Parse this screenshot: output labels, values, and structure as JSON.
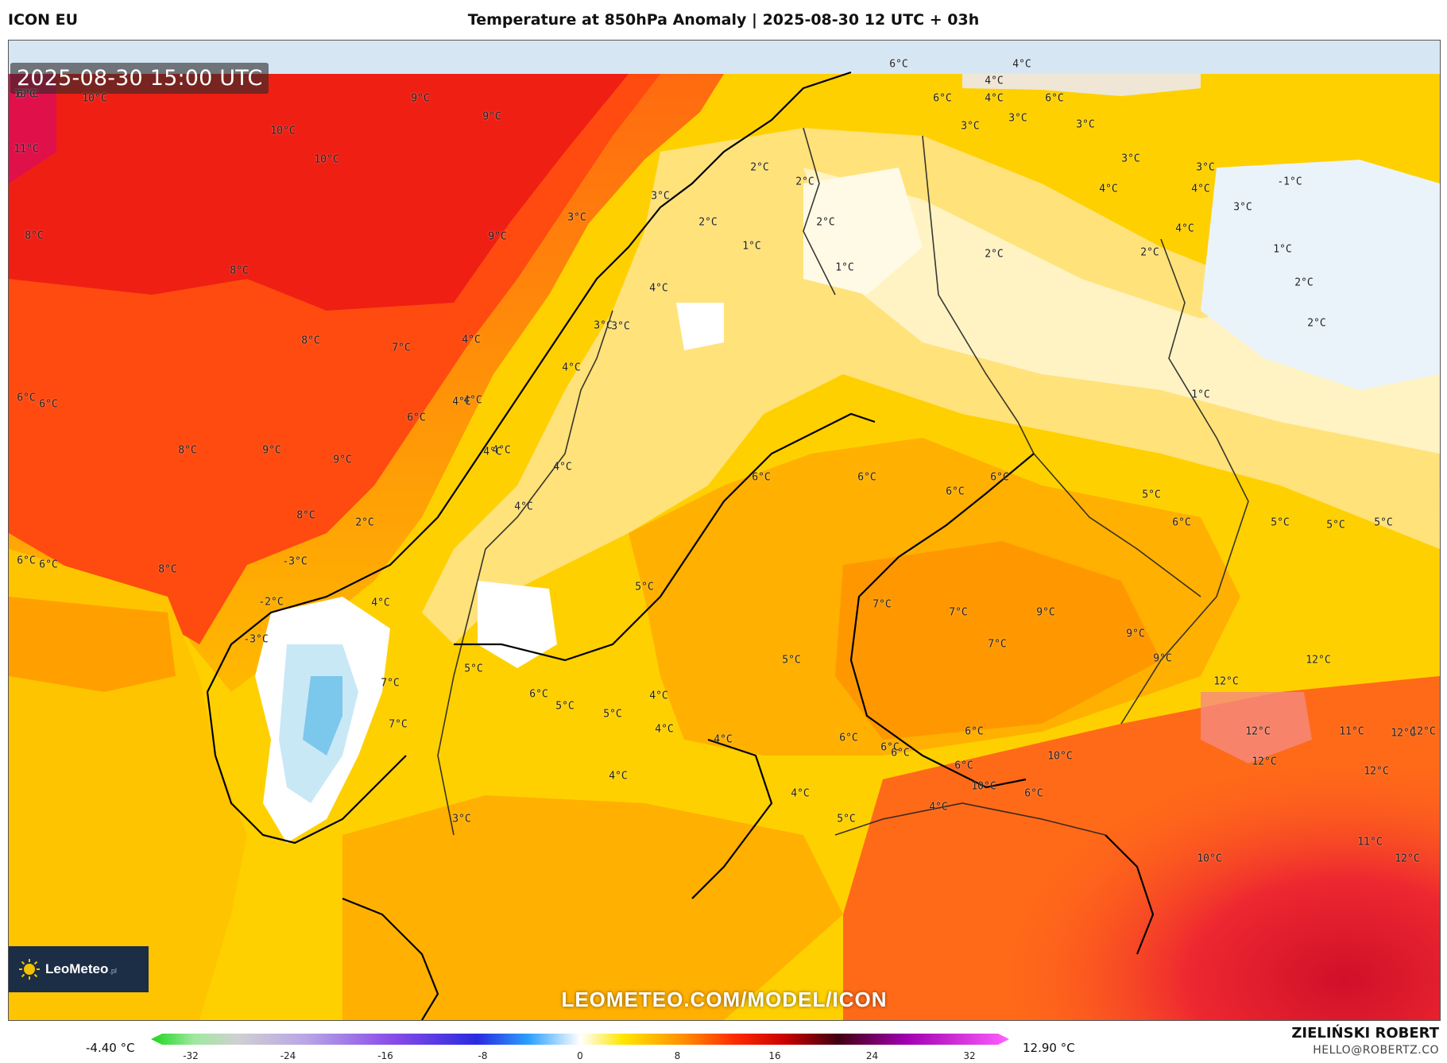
{
  "header": {
    "model": "ICON EU",
    "title": "Temperature at 850hPa Anomaly | 2025-08-30 12 UTC + 03h"
  },
  "map": {
    "timestamp": "2025-08-30 15:00 UTC",
    "watermark": "LEOMETEO.COM/MODEL/ICON",
    "logo": {
      "brand": "LeoMeteo",
      "suffix": ".pl"
    },
    "labels": [
      "10°C",
      "10°C",
      "11°C",
      "9°C",
      "10°C",
      "10°C",
      "9°C",
      "9°C",
      "8°C",
      "8°C",
      "8°C",
      "6°C",
      "6°C",
      "8°C",
      "9°C",
      "8°C",
      "9°C",
      "6°C",
      "6°C",
      "6°C",
      "8°C",
      "7°C",
      "4°C",
      "4°C",
      "4°C",
      "4°C",
      "3°C",
      "3°C",
      "4°C",
      "6°C",
      "3°C",
      "3°C",
      "3°C",
      "4°C",
      "2°C",
      "2°C",
      "2°C",
      "1°C",
      "2°C",
      "1°C",
      "2°C",
      "3°C",
      "4°C",
      "4°C",
      "4°C",
      "6°C",
      "6°C",
      "4°C",
      "3°C",
      "2°C",
      "1°C",
      "-1°C",
      "3°C",
      "2°C",
      "2°C",
      "1°C",
      "4°C",
      "4°C",
      "4°C",
      "4°C",
      "3°C",
      "3°C",
      "4°C",
      "2°C",
      "-3°C",
      "-2°C",
      "-3°C",
      "4°C",
      "5°C",
      "5°C",
      "6°C",
      "6°C",
      "6°C",
      "6°C",
      "5°C",
      "5°C",
      "6°C",
      "5°C",
      "5°C",
      "5°C",
      "6°C",
      "5°C",
      "4°C",
      "5°C",
      "4°C",
      "4°C",
      "4°C",
      "7°C",
      "7°C",
      "7°C",
      "7°C",
      "7°C",
      "9°C",
      "9°C",
      "9°C",
      "12°C",
      "12°C",
      "12°C",
      "12°C",
      "11°C",
      "12°C",
      "12°C",
      "12°C",
      "11°C",
      "12°C",
      "10°C",
      "10°C",
      "10°C",
      "6°C",
      "6°C",
      "6°C",
      "6°C",
      "6°C",
      "6°C",
      "5°C",
      "4°C",
      "3°C",
      "4°C",
      "6°C"
    ]
  },
  "colorbar": {
    "min_label": "-4.40 °C",
    "max_label": "12.90 °C",
    "ticks": [
      "-32",
      "-24",
      "-16",
      "-8",
      "0",
      "8",
      "16",
      "24",
      "32"
    ]
  },
  "credit": {
    "author": "ZIELIŃSKI ROBERT",
    "email": "HELLO@ROBERTZ.CO"
  }
}
